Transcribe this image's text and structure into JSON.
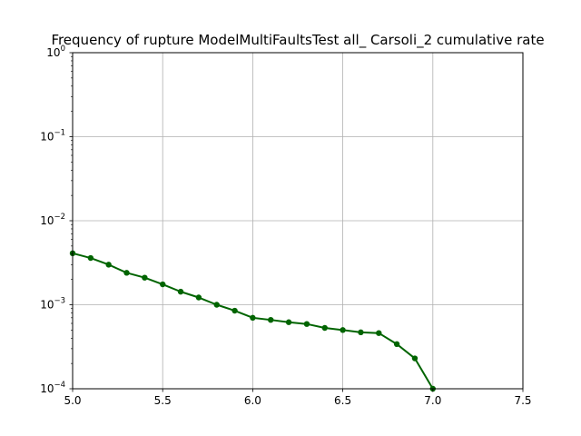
{
  "chart_data": {
    "type": "line",
    "title": "Frequency of rupture ModelMultiFaultsTest all_ Carsoli_2 cumulative rate",
    "xlabel": "",
    "ylabel": "",
    "xlim": [
      5.0,
      7.5
    ],
    "ylim": [
      0.0001,
      1
    ],
    "yscale": "log",
    "grid": true,
    "x_ticks": [
      5.0,
      5.5,
      6.0,
      6.5,
      7.0,
      7.5
    ],
    "x_tick_labels": [
      "5.0",
      "5.5",
      "6.0",
      "6.5",
      "7.0",
      "7.5"
    ],
    "y_ticks": [
      0.0001,
      0.001,
      0.01,
      0.1,
      1
    ],
    "y_tick_labels": [
      {
        "base": "10",
        "exp": "−4"
      },
      {
        "base": "10",
        "exp": "−3"
      },
      {
        "base": "10",
        "exp": "−2"
      },
      {
        "base": "10",
        "exp": "−1"
      },
      {
        "base": "10",
        "exp": "0"
      }
    ],
    "series": [
      {
        "color": "#006400",
        "x": [
          5.0,
          5.1,
          5.2,
          5.3,
          5.4,
          5.5,
          5.6,
          5.7,
          5.8,
          5.9,
          6.0,
          6.1,
          6.2,
          6.3,
          6.4,
          6.5,
          6.6,
          6.7,
          6.8,
          6.9,
          7.0
        ],
        "y": [
          0.0041,
          0.0036,
          0.003,
          0.0024,
          0.0021,
          0.00175,
          0.00143,
          0.00122,
          0.001,
          0.00085,
          0.0007,
          0.00066,
          0.00062,
          0.00059,
          0.00053,
          0.0005,
          0.00047,
          0.00046,
          0.00034,
          0.00023,
          0.0001
        ]
      }
    ]
  }
}
